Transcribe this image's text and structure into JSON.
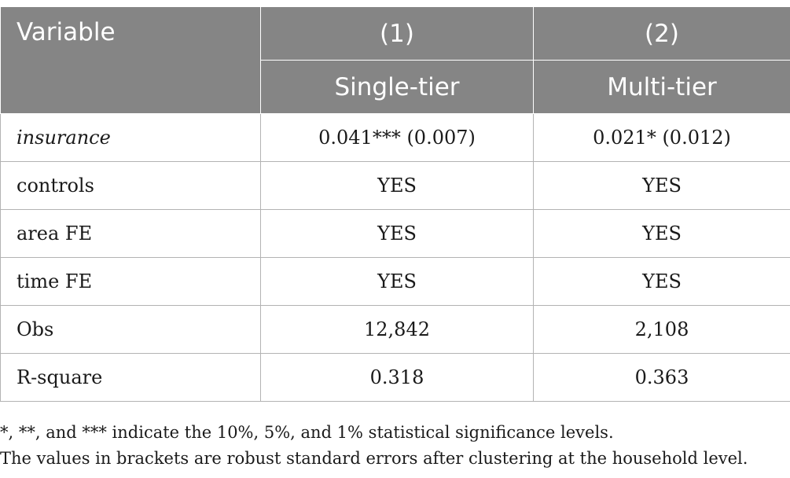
{
  "header": {
    "variable": "Variable",
    "col1_number": "(1)",
    "col2_number": "(2)",
    "col1_label": "Single-tier",
    "col2_label": "Multi-tier"
  },
  "rows": [
    {
      "label": "insurance",
      "col1": "0.041*** (0.007)",
      "col2": "0.021* (0.012)"
    },
    {
      "label": "controls",
      "col1": "YES",
      "col2": "YES"
    },
    {
      "label": "area FE",
      "col1": "YES",
      "col2": "YES"
    },
    {
      "label": "time FE",
      "col1": "YES",
      "col2": "YES"
    },
    {
      "label": "Obs",
      "col1": "12,842",
      "col2": "2,108"
    },
    {
      "label": "R-square",
      "col1": "0.318",
      "col2": "0.363"
    }
  ],
  "notes": [
    "*, **, and *** indicate the 10%, 5%, and 1% statistical significance levels.",
    "The values in brackets are robust standard errors after clustering at the household level."
  ],
  "colors": {
    "header_bg": "#858585",
    "header_text": "#ffffff",
    "grid": "#b3b3b3"
  }
}
